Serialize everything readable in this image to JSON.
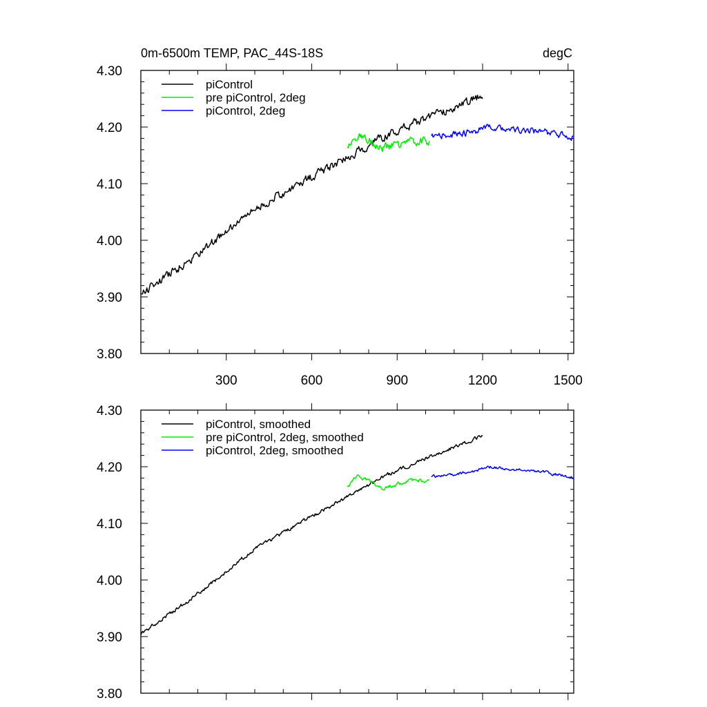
{
  "chart_data": [
    {
      "type": "line",
      "title_left": "0m-6500m TEMP, PAC_44S-18S",
      "title_right": "degC",
      "xlim": [
        0,
        1520
      ],
      "ylim": [
        3.8,
        4.3
      ],
      "x_ticks": [
        300,
        600,
        900,
        1200,
        1500
      ],
      "x_tick_labels": [
        "300",
        "600",
        "900",
        "1200",
        "1500"
      ],
      "y_ticks": [
        3.8,
        3.9,
        4.0,
        4.1,
        4.2,
        4.3
      ],
      "y_tick_labels": [
        "3.80",
        "3.90",
        "4.00",
        "4.10",
        "4.20",
        "4.30"
      ],
      "legend": [
        "piControl",
        "pre piControl, 2deg",
        "piControl, 2deg"
      ],
      "series": [
        {
          "name": "piControl",
          "color": "#000000",
          "x_start": 0,
          "x_end": 1200,
          "start": 3.905,
          "end": 4.255,
          "noise": 0.011,
          "knots": [
            [
              0,
              3.905
            ],
            [
              200,
              3.975
            ],
            [
              400,
              4.055
            ],
            [
              600,
              4.112
            ],
            [
              730,
              4.148
            ],
            [
              850,
              4.182
            ],
            [
              1000,
              4.215
            ],
            [
              1200,
              4.255
            ]
          ]
        },
        {
          "name": "pre piControl, 2deg",
          "color": "#00ee00",
          "x_start": 725,
          "x_end": 1015,
          "start": 4.165,
          "end": 4.175,
          "noise": 0.011,
          "knots": [
            [
              725,
              4.165
            ],
            [
              760,
              4.185
            ],
            [
              800,
              4.178
            ],
            [
              850,
              4.162
            ],
            [
              900,
              4.17
            ],
            [
              950,
              4.175
            ],
            [
              1015,
              4.175
            ]
          ]
        },
        {
          "name": "piControl, 2deg",
          "color": "#0000ff",
          "x_start": 1020,
          "x_end": 1520,
          "start": 4.182,
          "end": 4.183,
          "noise": 0.009,
          "knots": [
            [
              1020,
              4.182
            ],
            [
              1150,
              4.19
            ],
            [
              1230,
              4.2
            ],
            [
              1300,
              4.195
            ],
            [
              1400,
              4.192
            ],
            [
              1520,
              4.183
            ]
          ]
        }
      ]
    },
    {
      "type": "line",
      "xlim": [
        0,
        1520
      ],
      "ylim": [
        3.8,
        4.3
      ],
      "x_ticks": [
        300,
        600,
        900,
        1200,
        1500
      ],
      "y_ticks": [
        3.8,
        3.9,
        4.0,
        4.1,
        4.2,
        4.3
      ],
      "y_tick_labels": [
        "3.80",
        "3.90",
        "4.00",
        "4.10",
        "4.20",
        "4.30"
      ],
      "legend": [
        "piControl, smoothed",
        "pre piControl, 2deg, smoothed",
        "piControl, 2deg, smoothed"
      ],
      "series": [
        {
          "name": "piControl, smoothed",
          "color": "#000000",
          "x_start": 0,
          "x_end": 1200,
          "start": 3.905,
          "end": 4.255,
          "noise": 0.005,
          "knots": [
            [
              0,
              3.905
            ],
            [
              200,
              3.975
            ],
            [
              400,
              4.055
            ],
            [
              600,
              4.112
            ],
            [
              730,
              4.148
            ],
            [
              850,
              4.182
            ],
            [
              1000,
              4.215
            ],
            [
              1200,
              4.255
            ]
          ]
        },
        {
          "name": "pre piControl, 2deg, smoothed",
          "color": "#00ee00",
          "x_start": 725,
          "x_end": 1015,
          "start": 4.162,
          "end": 4.175,
          "noise": 0.005,
          "knots": [
            [
              725,
              4.162
            ],
            [
              760,
              4.185
            ],
            [
              800,
              4.175
            ],
            [
              850,
              4.162
            ],
            [
              900,
              4.17
            ],
            [
              950,
              4.175
            ],
            [
              1015,
              4.175
            ]
          ]
        },
        {
          "name": "piControl, 2deg, smoothed",
          "color": "#0000ff",
          "x_start": 1020,
          "x_end": 1520,
          "start": 4.182,
          "end": 4.18,
          "noise": 0.004,
          "knots": [
            [
              1020,
              4.182
            ],
            [
              1150,
              4.19
            ],
            [
              1230,
              4.2
            ],
            [
              1300,
              4.195
            ],
            [
              1400,
              4.192
            ],
            [
              1520,
              4.18
            ]
          ]
        }
      ]
    }
  ]
}
